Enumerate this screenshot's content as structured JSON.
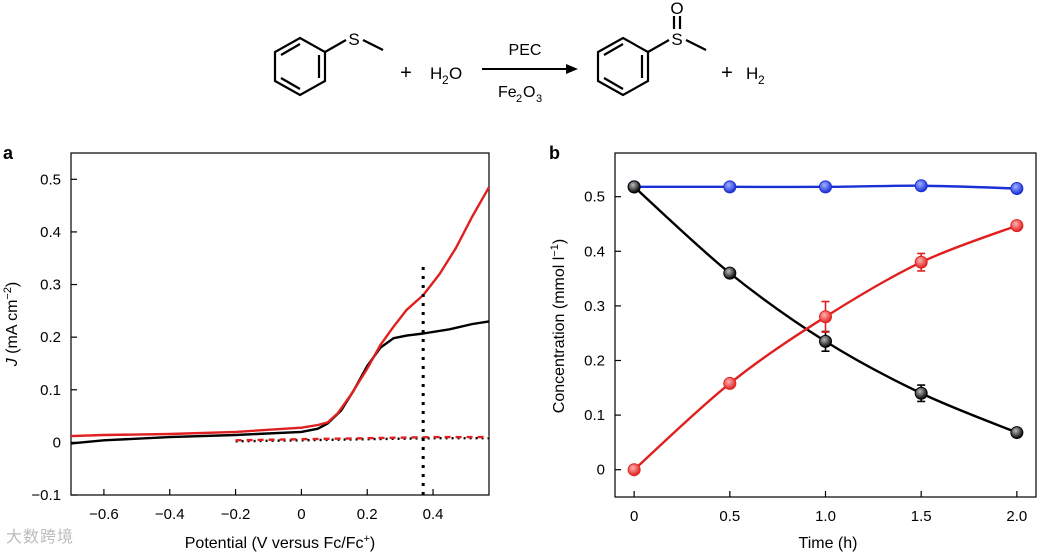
{
  "scheme": {
    "reactant_atom": "S",
    "plus_1": "+",
    "water_h": "H",
    "water_sub": "2",
    "water_o": "O",
    "arrow_top": "PEC",
    "arrow_bottom_fe": "Fe",
    "arrow_bottom_sub1": "2",
    "arrow_bottom_o": "O",
    "arrow_bottom_sub2": "3",
    "product_s": "S",
    "product_o": "O",
    "plus_2": "+",
    "h2_h": "H",
    "h2_sub": "2",
    "colors": {
      "sulfur": "#1a73c9",
      "oxygen": "#e02020",
      "bond": "#000000"
    }
  },
  "watermark": "大数跨境",
  "chart_data": [
    {
      "panel_label": "a",
      "type": "line",
      "ylabel_italic": "J",
      "ylabel_rest": " (mA cm",
      "ylabel_sup": "−2",
      "ylabel_end": ")",
      "xlabel": "Potential (V versus Fc/Fc",
      "xlabel_sup": "+",
      "xlabel_end": ")",
      "xlim": [
        -0.7,
        0.57
      ],
      "ylim": [
        -0.1,
        0.55
      ],
      "xticks": [
        -0.6,
        -0.4,
        -0.2,
        0,
        0.2,
        0.4
      ],
      "xtick_labels": [
        "−0.6",
        "−0.4",
        "−0.2",
        "0",
        "0.2",
        "0.4"
      ],
      "yticks": [
        -0.1,
        0,
        0.1,
        0.2,
        0.3,
        0.4,
        0.5
      ],
      "ytick_labels": [
        "−0.1",
        "0",
        "0.1",
        "0.2",
        "0.3",
        "0.4",
        "0.5"
      ],
      "vline_x": 0.37,
      "vline_ymax": 0.34,
      "series": [
        {
          "color": "#000000",
          "style": "solid",
          "x": [
            -0.7,
            -0.6,
            -0.4,
            -0.2,
            0,
            0.05,
            0.08,
            0.12,
            0.16,
            0.2,
            0.24,
            0.28,
            0.32,
            0.37,
            0.45,
            0.52,
            0.57
          ],
          "y": [
            -0.002,
            0.004,
            0.01,
            0.014,
            0.02,
            0.026,
            0.036,
            0.06,
            0.1,
            0.145,
            0.18,
            0.198,
            0.203,
            0.207,
            0.215,
            0.225,
            0.23
          ]
        },
        {
          "color": "#e02020",
          "style": "solid",
          "x": [
            -0.7,
            -0.6,
            -0.4,
            -0.2,
            0,
            0.05,
            0.08,
            0.11,
            0.15,
            0.2,
            0.24,
            0.28,
            0.32,
            0.37,
            0.42,
            0.47,
            0.52,
            0.57
          ],
          "y": [
            0.012,
            0.014,
            0.016,
            0.02,
            0.028,
            0.033,
            0.038,
            0.055,
            0.09,
            0.14,
            0.185,
            0.22,
            0.252,
            0.28,
            0.32,
            0.37,
            0.43,
            0.485
          ]
        },
        {
          "color": "#000000",
          "style": "dotted",
          "x": [
            -0.2,
            0,
            0.2,
            0.4,
            0.57
          ],
          "y": [
            0.002,
            0.004,
            0.006,
            0.008,
            0.008
          ]
        },
        {
          "color": "#e02020",
          "style": "dashed",
          "x": [
            -0.2,
            0,
            0.2,
            0.4,
            0.57
          ],
          "y": [
            0.004,
            0.006,
            0.008,
            0.01,
            0.01
          ]
        }
      ]
    },
    {
      "panel_label": "b",
      "type": "line",
      "ylabel": "Concentration (mmol l",
      "ylabel_sup": "−1",
      "ylabel_end": ")",
      "xlabel": "Time (h)",
      "xlim": [
        -0.1,
        2.1
      ],
      "ylim": [
        -0.05,
        0.58
      ],
      "xticks": [
        0,
        0.5,
        1.0,
        1.5,
        2.0
      ],
      "xtick_labels": [
        "0",
        "0.5",
        "1.0",
        "1.5",
        "2.0"
      ],
      "yticks": [
        0,
        0.1,
        0.2,
        0.3,
        0.4,
        0.5
      ],
      "ytick_labels": [
        "0",
        "0.1",
        "0.2",
        "0.3",
        "0.4",
        "0.5"
      ],
      "series": [
        {
          "color": "#1a2fd6",
          "x": [
            0,
            0.5,
            1.0,
            1.5,
            2.0
          ],
          "y": [
            0.518,
            0.518,
            0.518,
            0.52,
            0.515
          ],
          "err": [
            0.004,
            0.004,
            0.004,
            0.005,
            0.004
          ]
        },
        {
          "color": "#000000",
          "x": [
            0,
            0.5,
            1.0,
            1.5,
            2.0
          ],
          "y": [
            0.518,
            0.36,
            0.235,
            0.14,
            0.068
          ],
          "err": [
            0.004,
            0.006,
            0.018,
            0.015,
            0.006
          ]
        },
        {
          "color": "#e02020",
          "x": [
            0,
            0.5,
            1.0,
            1.5,
            2.0
          ],
          "y": [
            0.0,
            0.158,
            0.28,
            0.38,
            0.447
          ],
          "err": [
            0.003,
            0.007,
            0.028,
            0.016,
            0.007
          ]
        }
      ]
    }
  ]
}
